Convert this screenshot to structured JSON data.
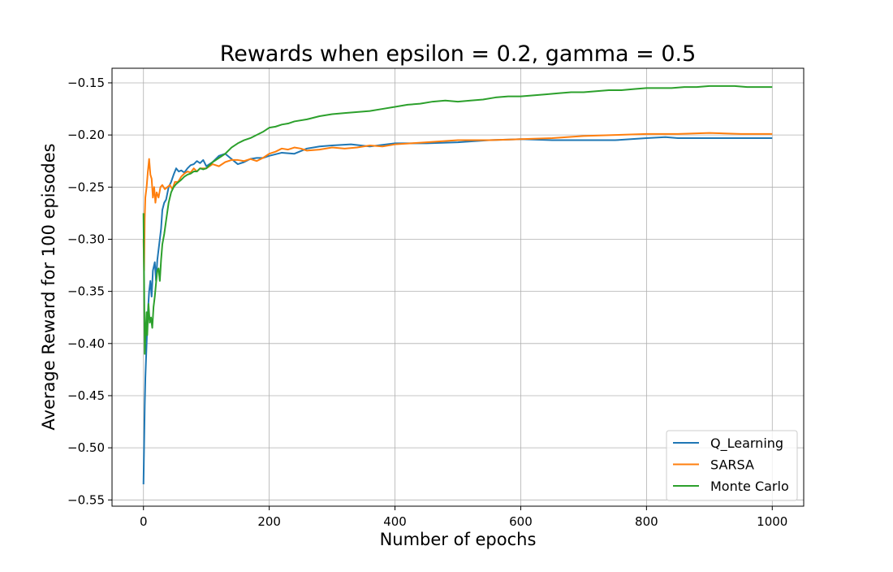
{
  "chart_data": {
    "type": "line",
    "title": "Rewards when epsilon = 0.2, gamma = 0.5",
    "xlabel": "Number of epochs",
    "ylabel": "Average Reward for 100 episodes",
    "xlim": [
      -50,
      1050
    ],
    "ylim": [
      -0.556,
      -0.136
    ],
    "xticks": [
      0,
      200,
      400,
      600,
      800,
      1000
    ],
    "xtick_labels": [
      "0",
      "200",
      "400",
      "600",
      "800",
      "1000"
    ],
    "yticks": [
      -0.55,
      -0.5,
      -0.45,
      -0.4,
      -0.35,
      -0.3,
      -0.25,
      -0.2,
      -0.15
    ],
    "ytick_labels": [
      "−0.55",
      "−0.50",
      "−0.45",
      "−0.40",
      "−0.35",
      "−0.30",
      "−0.25",
      "−0.20",
      "−0.15"
    ],
    "grid": true,
    "legend_position": "bottom-right",
    "series": [
      {
        "name": "Q_Learning",
        "color": "#1f77b4",
        "points": [
          [
            0,
            -0.535
          ],
          [
            2,
            -0.46
          ],
          [
            3,
            -0.433
          ],
          [
            5,
            -0.4
          ],
          [
            7,
            -0.37
          ],
          [
            9,
            -0.35
          ],
          [
            11,
            -0.34
          ],
          [
            13,
            -0.355
          ],
          [
            15,
            -0.33
          ],
          [
            18,
            -0.322
          ],
          [
            20,
            -0.34
          ],
          [
            22,
            -0.32
          ],
          [
            25,
            -0.305
          ],
          [
            28,
            -0.29
          ],
          [
            30,
            -0.272
          ],
          [
            33,
            -0.265
          ],
          [
            36,
            -0.262
          ],
          [
            40,
            -0.25
          ],
          [
            44,
            -0.245
          ],
          [
            48,
            -0.238
          ],
          [
            52,
            -0.232
          ],
          [
            56,
            -0.235
          ],
          [
            60,
            -0.234
          ],
          [
            65,
            -0.236
          ],
          [
            70,
            -0.232
          ],
          [
            75,
            -0.229
          ],
          [
            80,
            -0.228
          ],
          [
            85,
            -0.225
          ],
          [
            90,
            -0.227
          ],
          [
            95,
            -0.224
          ],
          [
            100,
            -0.23
          ],
          [
            110,
            -0.226
          ],
          [
            120,
            -0.22
          ],
          [
            130,
            -0.218
          ],
          [
            140,
            -0.223
          ],
          [
            150,
            -0.228
          ],
          [
            160,
            -0.226
          ],
          [
            170,
            -0.223
          ],
          [
            180,
            -0.222
          ],
          [
            190,
            -0.222
          ],
          [
            200,
            -0.22
          ],
          [
            220,
            -0.217
          ],
          [
            240,
            -0.218
          ],
          [
            260,
            -0.213
          ],
          [
            280,
            -0.211
          ],
          [
            300,
            -0.21
          ],
          [
            330,
            -0.209
          ],
          [
            360,
            -0.211
          ],
          [
            400,
            -0.208
          ],
          [
            450,
            -0.208
          ],
          [
            500,
            -0.207
          ],
          [
            550,
            -0.205
          ],
          [
            600,
            -0.204
          ],
          [
            650,
            -0.205
          ],
          [
            700,
            -0.205
          ],
          [
            750,
            -0.205
          ],
          [
            800,
            -0.203
          ],
          [
            830,
            -0.202
          ],
          [
            850,
            -0.203
          ],
          [
            900,
            -0.203
          ],
          [
            950,
            -0.203
          ],
          [
            1000,
            -0.203
          ]
        ]
      },
      {
        "name": "SARSA",
        "color": "#ff7f0e",
        "points": [
          [
            0,
            -0.3
          ],
          [
            1,
            -0.33
          ],
          [
            2,
            -0.28
          ],
          [
            3,
            -0.26
          ],
          [
            5,
            -0.25
          ],
          [
            7,
            -0.235
          ],
          [
            9,
            -0.223
          ],
          [
            11,
            -0.238
          ],
          [
            13,
            -0.242
          ],
          [
            15,
            -0.26
          ],
          [
            17,
            -0.25
          ],
          [
            19,
            -0.265
          ],
          [
            21,
            -0.255
          ],
          [
            24,
            -0.26
          ],
          [
            27,
            -0.25
          ],
          [
            30,
            -0.248
          ],
          [
            34,
            -0.252
          ],
          [
            38,
            -0.25
          ],
          [
            42,
            -0.248
          ],
          [
            46,
            -0.252
          ],
          [
            50,
            -0.245
          ],
          [
            55,
            -0.245
          ],
          [
            60,
            -0.24
          ],
          [
            65,
            -0.237
          ],
          [
            70,
            -0.235
          ],
          [
            75,
            -0.236
          ],
          [
            80,
            -0.232
          ],
          [
            85,
            -0.235
          ],
          [
            90,
            -0.232
          ],
          [
            95,
            -0.232
          ],
          [
            100,
            -0.232
          ],
          [
            110,
            -0.228
          ],
          [
            120,
            -0.23
          ],
          [
            130,
            -0.226
          ],
          [
            140,
            -0.224
          ],
          [
            150,
            -0.224
          ],
          [
            160,
            -0.225
          ],
          [
            170,
            -0.223
          ],
          [
            180,
            -0.225
          ],
          [
            190,
            -0.222
          ],
          [
            200,
            -0.218
          ],
          [
            210,
            -0.216
          ],
          [
            220,
            -0.213
          ],
          [
            230,
            -0.214
          ],
          [
            240,
            -0.212
          ],
          [
            250,
            -0.213
          ],
          [
            260,
            -0.215
          ],
          [
            280,
            -0.214
          ],
          [
            300,
            -0.212
          ],
          [
            320,
            -0.213
          ],
          [
            340,
            -0.212
          ],
          [
            360,
            -0.21
          ],
          [
            380,
            -0.211
          ],
          [
            400,
            -0.209
          ],
          [
            450,
            -0.207
          ],
          [
            500,
            -0.205
          ],
          [
            550,
            -0.205
          ],
          [
            600,
            -0.204
          ],
          [
            650,
            -0.203
          ],
          [
            700,
            -0.201
          ],
          [
            750,
            -0.2
          ],
          [
            800,
            -0.199
          ],
          [
            850,
            -0.199
          ],
          [
            900,
            -0.198
          ],
          [
            950,
            -0.199
          ],
          [
            1000,
            -0.199
          ]
        ]
      },
      {
        "name": "Monte Carlo",
        "color": "#2ca02c",
        "points": [
          [
            0,
            -0.275
          ],
          [
            1,
            -0.34
          ],
          [
            2,
            -0.41
          ],
          [
            3,
            -0.395
          ],
          [
            5,
            -0.37
          ],
          [
            6,
            -0.392
          ],
          [
            8,
            -0.362
          ],
          [
            10,
            -0.38
          ],
          [
            12,
            -0.375
          ],
          [
            14,
            -0.385
          ],
          [
            16,
            -0.365
          ],
          [
            18,
            -0.355
          ],
          [
            20,
            -0.342
          ],
          [
            22,
            -0.33
          ],
          [
            24,
            -0.328
          ],
          [
            26,
            -0.34
          ],
          [
            28,
            -0.32
          ],
          [
            30,
            -0.305
          ],
          [
            33,
            -0.295
          ],
          [
            36,
            -0.282
          ],
          [
            40,
            -0.265
          ],
          [
            44,
            -0.255
          ],
          [
            48,
            -0.25
          ],
          [
            52,
            -0.247
          ],
          [
            56,
            -0.245
          ],
          [
            60,
            -0.243
          ],
          [
            65,
            -0.24
          ],
          [
            70,
            -0.238
          ],
          [
            75,
            -0.237
          ],
          [
            80,
            -0.235
          ],
          [
            85,
            -0.235
          ],
          [
            90,
            -0.232
          ],
          [
            95,
            -0.233
          ],
          [
            100,
            -0.232
          ],
          [
            110,
            -0.226
          ],
          [
            120,
            -0.222
          ],
          [
            130,
            -0.218
          ],
          [
            140,
            -0.212
          ],
          [
            150,
            -0.208
          ],
          [
            160,
            -0.205
          ],
          [
            170,
            -0.203
          ],
          [
            180,
            -0.2
          ],
          [
            190,
            -0.197
          ],
          [
            200,
            -0.193
          ],
          [
            210,
            -0.192
          ],
          [
            220,
            -0.19
          ],
          [
            230,
            -0.189
          ],
          [
            240,
            -0.187
          ],
          [
            260,
            -0.185
          ],
          [
            280,
            -0.182
          ],
          [
            300,
            -0.18
          ],
          [
            320,
            -0.179
          ],
          [
            340,
            -0.178
          ],
          [
            360,
            -0.177
          ],
          [
            380,
            -0.175
          ],
          [
            400,
            -0.173
          ],
          [
            420,
            -0.171
          ],
          [
            440,
            -0.17
          ],
          [
            460,
            -0.168
          ],
          [
            480,
            -0.167
          ],
          [
            500,
            -0.168
          ],
          [
            520,
            -0.167
          ],
          [
            540,
            -0.166
          ],
          [
            560,
            -0.164
          ],
          [
            580,
            -0.163
          ],
          [
            600,
            -0.163
          ],
          [
            620,
            -0.162
          ],
          [
            640,
            -0.161
          ],
          [
            660,
            -0.16
          ],
          [
            680,
            -0.159
          ],
          [
            700,
            -0.159
          ],
          [
            720,
            -0.158
          ],
          [
            740,
            -0.157
          ],
          [
            760,
            -0.157
          ],
          [
            780,
            -0.156
          ],
          [
            800,
            -0.155
          ],
          [
            820,
            -0.155
          ],
          [
            840,
            -0.155
          ],
          [
            860,
            -0.154
          ],
          [
            880,
            -0.154
          ],
          [
            900,
            -0.153
          ],
          [
            920,
            -0.153
          ],
          [
            940,
            -0.153
          ],
          [
            960,
            -0.154
          ],
          [
            980,
            -0.154
          ],
          [
            1000,
            -0.154
          ]
        ]
      }
    ]
  }
}
